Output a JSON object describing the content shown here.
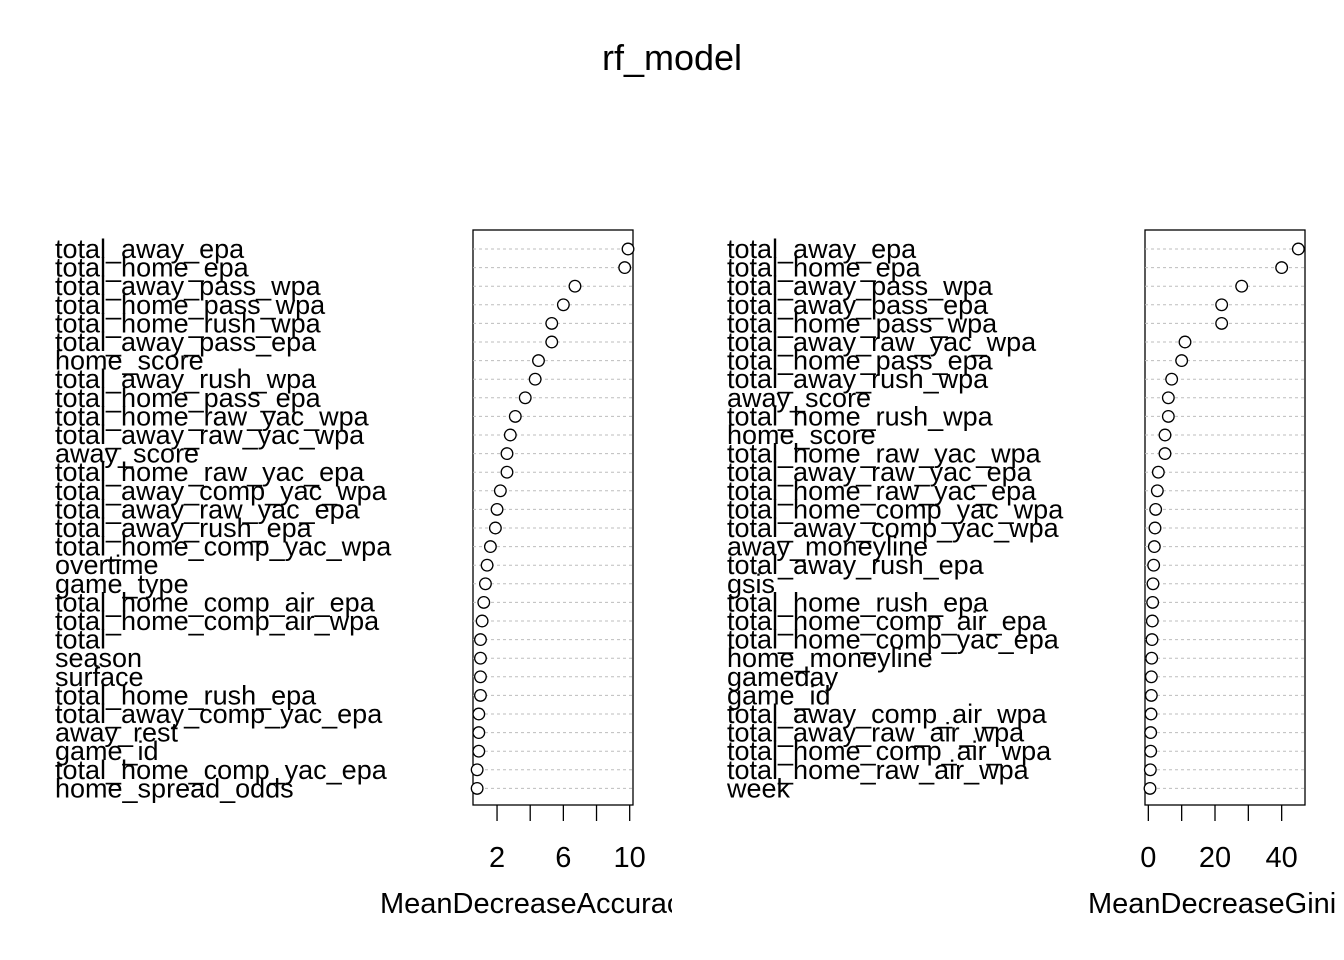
{
  "title": "rf_model",
  "chart_data": [
    {
      "type": "scatter",
      "subtype": "dotchart",
      "xlabel": "MeanDecreaseAccuracy",
      "xlabel_visible": "MeanDecreaseAccu",
      "xlim": [
        0.55,
        10.2
      ],
      "xticks": [
        2,
        4,
        6,
        8,
        10
      ],
      "xtick_labels": [
        "2",
        "6",
        "10"
      ],
      "grid": "dotted horizontal",
      "categories": [
        "total_away_epa",
        "total_home_epa",
        "total_away_pass_wpa",
        "total_home_pass_wpa",
        "total_home_rush_wpa",
        "total_away_pass_epa",
        "home_score",
        "total_away_rush_wpa",
        "total_home_pass_epa",
        "total_home_raw_yac_wpa",
        "total_away_raw_yac_wpa",
        "away_score",
        "total_home_raw_yac_epa",
        "total_away_comp_yac_wpa",
        "total_away_raw_yac_epa",
        "total_away_rush_epa",
        "total_home_comp_yac_wpa",
        "overtime",
        "game_type",
        "total_home_comp_air_epa",
        "total_home_comp_air_wpa",
        "total",
        "season",
        "surface",
        "total_home_rush_epa",
        "total_away_comp_yac_epa",
        "away_rest",
        "game_id",
        "total_home_comp_yac_epa",
        "home_spread_odds"
      ],
      "values": [
        9.9,
        9.7,
        6.7,
        6.0,
        5.3,
        5.3,
        4.5,
        4.3,
        3.7,
        3.1,
        2.8,
        2.6,
        2.6,
        2.2,
        2.0,
        1.9,
        1.6,
        1.4,
        1.3,
        1.2,
        1.1,
        1.0,
        1.0,
        1.0,
        1.0,
        0.9,
        0.9,
        0.9,
        0.8,
        0.8
      ]
    },
    {
      "type": "scatter",
      "subtype": "dotchart",
      "xlabel": "MeanDecreaseGini",
      "xlabel_visible": "MeanDecreaseGi",
      "xlim": [
        -1,
        47
      ],
      "xticks": [
        0,
        10,
        20,
        30,
        40
      ],
      "xtick_labels": [
        "0",
        "20",
        "40"
      ],
      "grid": "dotted horizontal",
      "categories": [
        "total_away_epa",
        "total_home_epa",
        "total_away_pass_wpa",
        "total_away_pass_epa",
        "total_home_pass_wpa",
        "total_away_raw_yac_wpa",
        "total_home_pass_epa",
        "total_away_rush_wpa",
        "away_score",
        "total_home_rush_wpa",
        "home_score",
        "total_home_raw_yac_wpa",
        "total_away_raw_yac_epa",
        "total_home_raw_yac_epa",
        "total_home_comp_yac_wpa",
        "total_away_comp_yac_wpa",
        "away_moneyline",
        "total_away_rush_epa",
        "gsis",
        "total_home_rush_epa",
        "total_home_comp_air_epa",
        "total_home_comp_yac_epa",
        "home_moneyline",
        "gameday",
        "game_id",
        "total_away_comp_air_wpa",
        "total_away_raw_air_wpa",
        "total_home_comp_air_wpa",
        "total_home_raw_air_wpa",
        "week"
      ],
      "values": [
        45,
        40,
        28,
        22,
        22,
        11,
        10,
        7,
        6,
        6,
        5,
        5,
        3,
        2.7,
        2.2,
        2.0,
        1.8,
        1.6,
        1.4,
        1.3,
        1.2,
        1.1,
        1.0,
        0.9,
        0.9,
        0.8,
        0.7,
        0.7,
        0.6,
        0.5
      ]
    }
  ]
}
